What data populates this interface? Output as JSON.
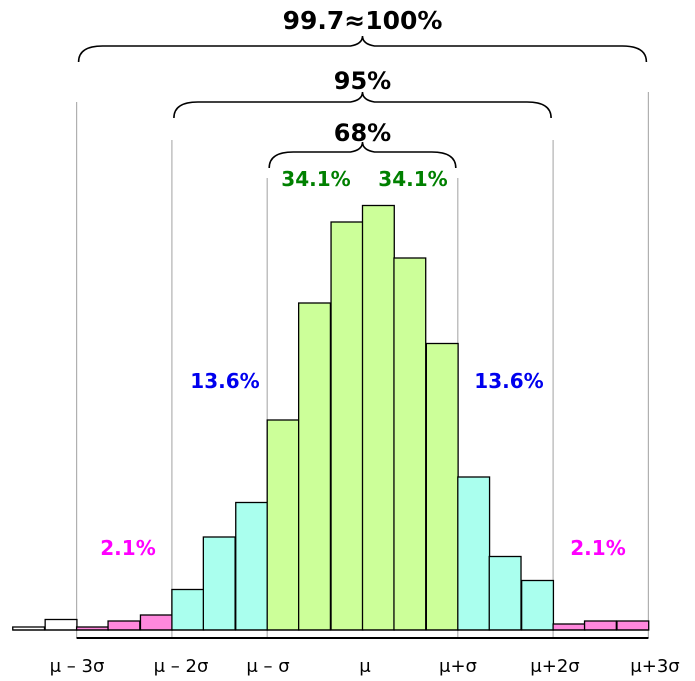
{
  "chart_data": {
    "type": "bar",
    "x_tick_labels": [
      "μ – 3σ",
      "μ – 2σ",
      "μ – σ",
      "μ",
      "μ+σ",
      "μ+2σ",
      "μ+3σ"
    ],
    "bins_per_sigma": 3,
    "x_range_sigma": [
      -3.67,
      3
    ],
    "bars": [
      {
        "x_start": -3.67,
        "value": 1.0,
        "region": "tail"
      },
      {
        "x_start": -3.33,
        "value": 3.5,
        "region": "tail"
      },
      {
        "x_start": -3.0,
        "value": 1.0,
        "region": "far"
      },
      {
        "x_start": -2.67,
        "value": 3.0,
        "region": "far"
      },
      {
        "x_start": -2.33,
        "value": 5.0,
        "region": "far"
      },
      {
        "x_start": -2.0,
        "value": 13.5,
        "region": "mid"
      },
      {
        "x_start": -1.67,
        "value": 31.0,
        "region": "mid"
      },
      {
        "x_start": -1.33,
        "value": 42.5,
        "region": "mid"
      },
      {
        "x_start": -1.0,
        "value": 70.0,
        "region": "center"
      },
      {
        "x_start": -0.67,
        "value": 109.0,
        "region": "center"
      },
      {
        "x_start": -0.33,
        "value": 136.0,
        "region": "center"
      },
      {
        "x_start": 0.0,
        "value": 141.5,
        "region": "center"
      },
      {
        "x_start": 0.33,
        "value": 124.0,
        "region": "center"
      },
      {
        "x_start": 0.67,
        "value": 95.5,
        "region": "center"
      },
      {
        "x_start": 1.0,
        "value": 51.0,
        "region": "mid"
      },
      {
        "x_start": 1.33,
        "value": 24.5,
        "region": "mid"
      },
      {
        "x_start": 1.67,
        "value": 16.5,
        "region": "mid"
      },
      {
        "x_start": 2.0,
        "value": 2.0,
        "region": "far"
      },
      {
        "x_start": 2.33,
        "value": 3.0,
        "region": "far"
      },
      {
        "x_start": 2.67,
        "value": 3.0,
        "region": "far"
      }
    ],
    "region_colors": {
      "tail": "#ffffff",
      "far": "#ff88dd",
      "mid": "#aaffee",
      "center": "#ccff99"
    },
    "brackets": [
      {
        "label": "99.7≈100%",
        "from_sigma": -3,
        "to_sigma": 3
      },
      {
        "label": "95%",
        "from_sigma": -2,
        "to_sigma": 2
      },
      {
        "label": "68%",
        "from_sigma": -1,
        "to_sigma": 1
      }
    ],
    "percent_labels": [
      {
        "text": "34.1%",
        "position": "center-left",
        "color": "#008000"
      },
      {
        "text": "34.1%",
        "position": "center-right",
        "color": "#008000"
      },
      {
        "text": "13.6%",
        "position": "mid-left",
        "color": "#0000ee"
      },
      {
        "text": "13.6%",
        "position": "mid-right",
        "color": "#0000ee"
      },
      {
        "text": "2.1%",
        "position": "far-left",
        "color": "#ff00ff"
      },
      {
        "text": "2.1%",
        "position": "far-right",
        "color": "#ff00ff"
      }
    ]
  }
}
